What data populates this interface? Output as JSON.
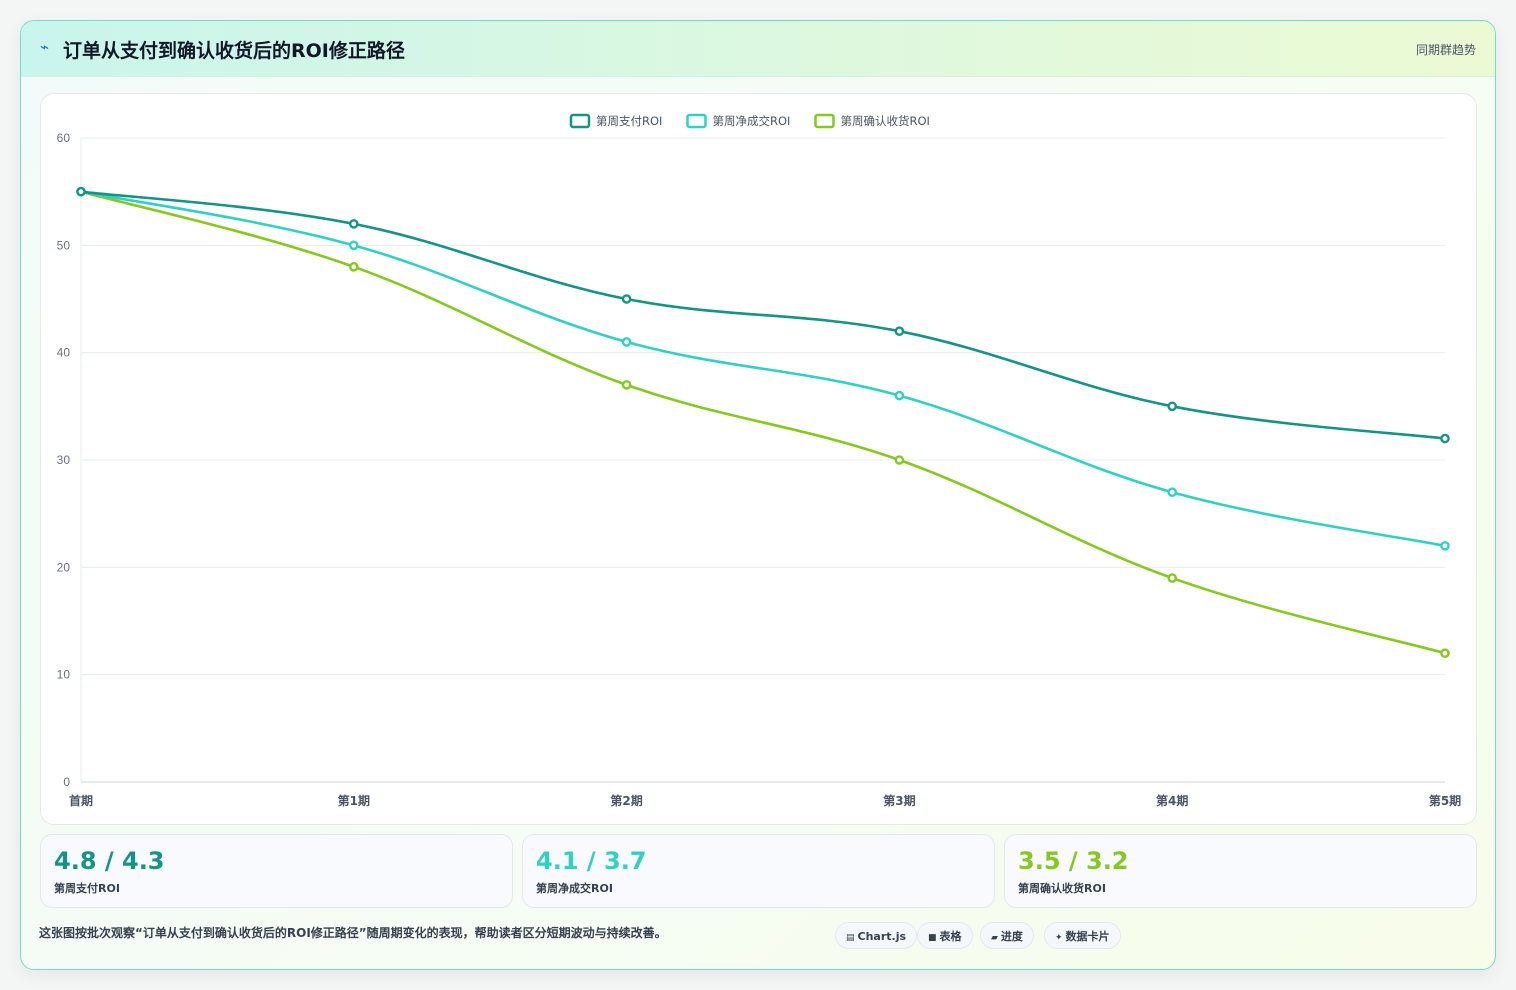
{
  "header": {
    "icon": "lightning-icon",
    "title": "订单从支付到确认收货后的ROI修正路径",
    "tag": "同期群趋势"
  },
  "chart_data": {
    "type": "line",
    "categories": [
      "首期",
      "第1期",
      "第2期",
      "第3期",
      "第4期",
      "第5期"
    ],
    "ylim": [
      0,
      60
    ],
    "yticks": [
      0,
      10,
      20,
      30,
      40,
      50,
      60
    ],
    "grid": true,
    "legend_position": "top-center",
    "series": [
      {
        "name": "第周支付ROI",
        "color": "#139486",
        "values": [
          55,
          52,
          45,
          42,
          35,
          32
        ]
      },
      {
        "name": "第周净成交ROI",
        "color": "#2fd1c3",
        "values": [
          55,
          50,
          41,
          36,
          27,
          22
        ]
      },
      {
        "name": "第周确认收货ROI",
        "color": "#84c91c",
        "values": [
          55,
          48,
          37,
          30,
          19,
          12
        ]
      }
    ]
  },
  "stats": [
    {
      "value": "4.8 / 4.3",
      "label": "第周支付ROI",
      "color": "#139486"
    },
    {
      "value": "4.1 / 3.7",
      "label": "第周净成交ROI",
      "color": "#2fd1c3"
    },
    {
      "value": "3.5 / 3.2",
      "label": "第周确认收货ROI",
      "color": "#84c91c"
    }
  ],
  "footer": {
    "note": "这张图按批次观察“订单从支付到确认收货后的ROI修正路径”随周期变化的表现，帮助读者区分短期波动与持续改善。",
    "pills": [
      {
        "icon": "▤",
        "label": "Chart.js"
      },
      {
        "icon": "■",
        "label": "表格"
      },
      {
        "icon": "▰",
        "label": "进度"
      },
      {
        "icon": "✦",
        "label": "数据卡片"
      }
    ]
  }
}
